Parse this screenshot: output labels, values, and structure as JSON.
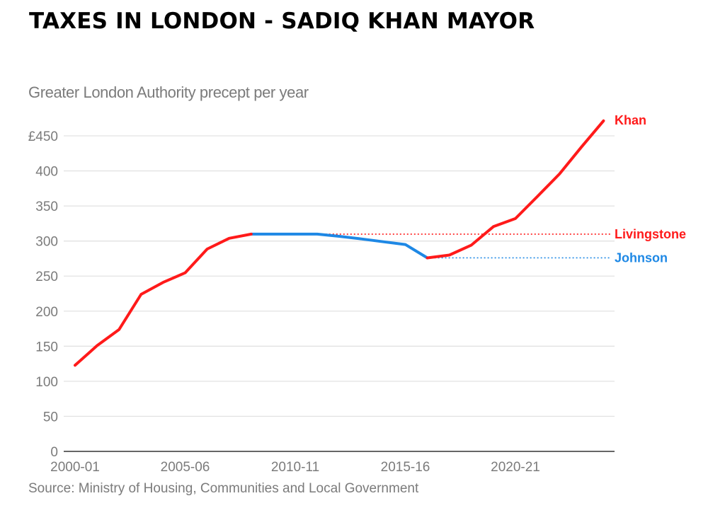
{
  "headline": "TAXES IN LONDON - SADIQ KHAN MAYOR",
  "colors": {
    "red": "#ff1a1a",
    "blue": "#1e88e5",
    "text_gray": "#7b7b7b",
    "grid": "#e2e2e2",
    "axis": "#666666"
  },
  "chart_data": {
    "type": "line",
    "title": "Greater London Authority precept per year",
    "source": "Source: Ministry of Housing, Communities and Local Government",
    "xlabel": "",
    "ylabel": "",
    "ylim": [
      0,
      450
    ],
    "yticks": [
      0,
      50,
      100,
      150,
      200,
      250,
      300,
      350,
      400,
      450
    ],
    "ytick_labels": [
      "0",
      "50",
      "100",
      "150",
      "200",
      "250",
      "300",
      "350",
      "400",
      "£450"
    ],
    "grid": true,
    "x": [
      "2000-01",
      "2001-02",
      "2002-03",
      "2003-04",
      "2004-05",
      "2005-06",
      "2006-07",
      "2007-08",
      "2008-09",
      "2009-10",
      "2010-11",
      "2011-12",
      "2012-13",
      "2013-14",
      "2014-15",
      "2015-16",
      "2016-17",
      "2017-18",
      "2018-19",
      "2019-20",
      "2020-21",
      "2021-22",
      "2022-23",
      "2023-24",
      "2024-25"
    ],
    "xtick_labels": [
      "2000-01",
      "2005-06",
      "2010-11",
      "2015-16",
      "2020-21"
    ],
    "series": [
      {
        "name": "Livingstone",
        "mayor": "Livingstone",
        "color": "#ff1a1a",
        "x": [
          "2000-01",
          "2001-02",
          "2002-03",
          "2003-04",
          "2004-05",
          "2005-06",
          "2006-07",
          "2007-08",
          "2008-09"
        ],
        "values": [
          122.76,
          150.88,
          173.88,
          223.97,
          241.01,
          254.62,
          288.61,
          303.88,
          309.82
        ]
      },
      {
        "name": "Johnson",
        "mayor": "Johnson",
        "color": "#1e88e5",
        "x": [
          "2008-09",
          "2009-10",
          "2010-11",
          "2011-12",
          "2012-13",
          "2013-14",
          "2014-15",
          "2015-16",
          "2016-17"
        ],
        "values": [
          309.82,
          309.82,
          309.82,
          309.82,
          306.72,
          303.0,
          299.0,
          295.0,
          276.0
        ]
      },
      {
        "name": "Khan",
        "mayor": "Khan",
        "color": "#ff1a1a",
        "x": [
          "2016-17",
          "2017-18",
          "2018-19",
          "2019-20",
          "2020-21",
          "2021-22",
          "2022-23",
          "2023-24",
          "2024-25"
        ],
        "values": [
          276.0,
          280.02,
          294.23,
          320.51,
          332.07,
          363.66,
          395.59,
          434.14,
          471.4
        ]
      }
    ],
    "reference_lines": [
      {
        "name": "Livingstone",
        "value": 309.82,
        "color": "#ff1a1a",
        "style": "dotted",
        "from": "2008-09"
      },
      {
        "name": "Johnson",
        "value": 276.0,
        "color": "#1e88e5",
        "style": "dotted",
        "from": "2016-17"
      }
    ],
    "annotations": [
      {
        "text": "Khan",
        "color": "#ff1a1a",
        "anchor_series": "Khan"
      },
      {
        "text": "Livingstone",
        "color": "#ff1a1a",
        "anchor_line": "Livingstone"
      },
      {
        "text": "Johnson",
        "color": "#1e88e5",
        "anchor_line": "Johnson"
      }
    ]
  }
}
